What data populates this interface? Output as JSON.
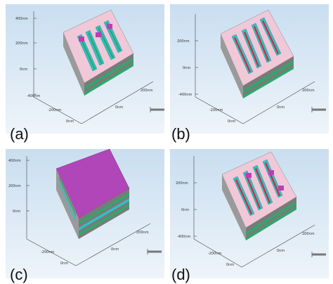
{
  "panels": [
    {
      "caption": "(a)",
      "z_ticks": [
        "400nm",
        "200nm",
        "0nm",
        "-400nm"
      ],
      "x_ticks": [
        "0nm",
        "200nm"
      ],
      "y_ticks": [
        "-200nm",
        "0nm",
        "200nm"
      ],
      "view": "top-layout",
      "bar_fill": "green"
    },
    {
      "caption": "(b)",
      "z_ticks": [
        "200nm",
        "0nm",
        "-400nm"
      ],
      "x_ticks": [
        "0nm",
        "200nm"
      ],
      "y_ticks": [
        "-200nm",
        "0nm",
        "200nm"
      ],
      "view": "top-layout",
      "bar_fill": "red"
    },
    {
      "caption": "(c)",
      "z_ticks": [
        "400nm",
        "200nm",
        "0nm"
      ],
      "x_ticks": [
        "0nm",
        "200nm"
      ],
      "y_ticks": [
        "-200nm",
        "0nm",
        "200nm"
      ],
      "view": "capped-block",
      "bar_fill": "magenta"
    },
    {
      "caption": "(d)",
      "z_ticks": [
        "200nm",
        "0nm",
        "-400nm"
      ],
      "x_ticks": [
        "0nm",
        "200nm"
      ],
      "y_ticks": [
        "-200nm",
        "0nm",
        "200nm"
      ],
      "view": "top-layout",
      "bar_fill": "red"
    }
  ],
  "colors": {
    "background_top": "#c9def0",
    "background_bottom": "#eef4fa",
    "top_surface": "#f0c8d8",
    "block_side": "#8a8a8a",
    "green": "#2fa86a",
    "teal": "#2fc0c8",
    "red": "#d42a3a",
    "magenta": "#c03ab8",
    "cap": "#b046b8"
  }
}
